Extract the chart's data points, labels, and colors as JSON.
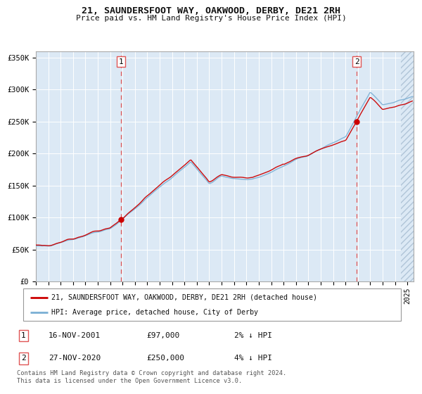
{
  "title": "21, SAUNDERSFOOT WAY, OAKWOOD, DERBY, DE21 2RH",
  "subtitle": "Price paid vs. HM Land Registry's House Price Index (HPI)",
  "legend_line1": "21, SAUNDERSFOOT WAY, OAKWOOD, DERBY, DE21 2RH (detached house)",
  "legend_line2": "HPI: Average price, detached house, City of Derby",
  "sale1_date": "16-NOV-2001",
  "sale1_price": "£97,000",
  "sale1_hpi": "2% ↓ HPI",
  "sale1_year": 2001.88,
  "sale1_value": 97000,
  "sale2_date": "27-NOV-2020",
  "sale2_price": "£250,000",
  "sale2_hpi": "4% ↓ HPI",
  "sale2_year": 2020.91,
  "sale2_value": 250000,
  "xmin": 1995.0,
  "xmax": 2025.5,
  "ymin": 0,
  "ymax": 360000,
  "yticks": [
    0,
    50000,
    100000,
    150000,
    200000,
    250000,
    300000,
    350000
  ],
  "ytick_labels": [
    "£0",
    "£50K",
    "£100K",
    "£150K",
    "£200K",
    "£250K",
    "£300K",
    "£350K"
  ],
  "background_color": "#dce9f5",
  "grid_color": "#ffffff",
  "red_line_color": "#cc0000",
  "blue_line_color": "#7aafd4",
  "dashed_line_color": "#e05555",
  "footnote": "Contains HM Land Registry data © Crown copyright and database right 2024.\nThis data is licensed under the Open Government Licence v3.0."
}
